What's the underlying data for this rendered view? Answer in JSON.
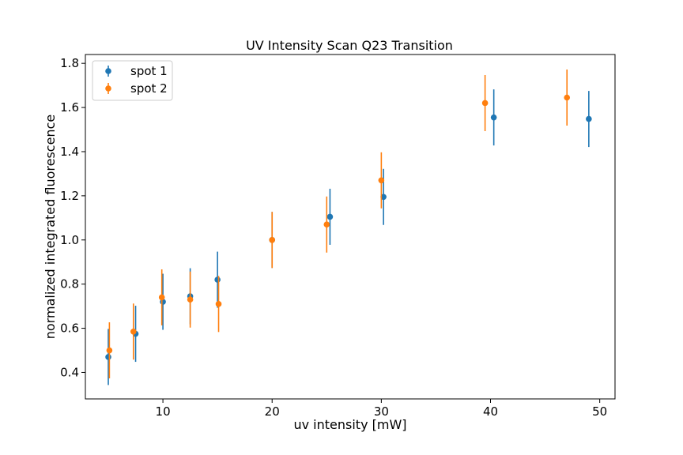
{
  "chart_data": {
    "type": "scatter",
    "title": "UV Intensity Scan Q23 Transition",
    "xlabel": "uv intensity [mW]",
    "ylabel": "normalized integrated fluorescence",
    "xlim": [
      2.9,
      51.4
    ],
    "ylim": [
      0.28,
      1.84
    ],
    "xticks": [
      10,
      20,
      30,
      40,
      50
    ],
    "yticks": [
      0.4,
      0.6,
      0.8,
      1.0,
      1.2,
      1.4,
      1.6,
      1.8
    ],
    "ytick_labels": [
      "0.4",
      "0.6",
      "0.8",
      "1.0",
      "1.2",
      "1.4",
      "1.6",
      "1.8"
    ],
    "grid": false,
    "legend_position": "top-left",
    "error_bars": true,
    "series": [
      {
        "name": "spot 1",
        "color": "#1f77b4",
        "x": [
          5.0,
          7.5,
          10.0,
          12.5,
          15.0,
          20.0,
          25.3,
          30.2,
          40.3,
          49.0
        ],
        "y": [
          0.47,
          0.575,
          0.72,
          0.745,
          0.82,
          1.0,
          1.105,
          1.195,
          1.555,
          1.548
        ],
        "yerr": [
          0.127,
          0.127,
          0.127,
          0.127,
          0.127,
          0.127,
          0.127,
          0.127,
          0.127,
          0.127
        ]
      },
      {
        "name": "spot 2",
        "color": "#ff7f0e",
        "x": [
          5.1,
          7.3,
          9.9,
          12.5,
          15.1,
          20.0,
          25.0,
          30.0,
          39.5,
          47.0
        ],
        "y": [
          0.5,
          0.585,
          0.74,
          0.73,
          0.71,
          1.0,
          1.07,
          1.27,
          1.62,
          1.645
        ],
        "yerr": [
          0.127,
          0.127,
          0.127,
          0.127,
          0.127,
          0.127,
          0.127,
          0.127,
          0.127,
          0.127
        ]
      }
    ]
  }
}
